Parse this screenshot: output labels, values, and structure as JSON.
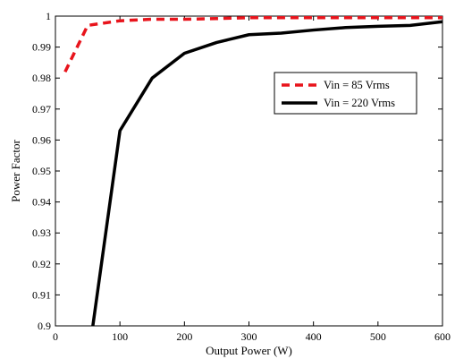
{
  "chart_data": {
    "type": "line",
    "xlabel": "Output Power (W)",
    "ylabel": "Power Factor",
    "xlim": [
      0,
      600
    ],
    "ylim": [
      0.9,
      1.0
    ],
    "xticks": [
      0,
      100,
      200,
      300,
      400,
      500,
      600
    ],
    "yticks": [
      0.9,
      0.91,
      0.92,
      0.93,
      0.94,
      0.95,
      0.96,
      0.97,
      0.98,
      0.99,
      1.0
    ],
    "xtick_labels": [
      "0",
      "100",
      "200",
      "300",
      "400",
      "500",
      "600"
    ],
    "ytick_labels": [
      "0.9",
      "0.91",
      "0.92",
      "0.93",
      "0.94",
      "0.95",
      "0.96",
      "0.97",
      "0.98",
      "0.99",
      "1"
    ],
    "grid": false,
    "legend_position": "upper-right",
    "series": [
      {
        "name": "Vin = 85 Vrms",
        "color": "#e8141c",
        "line_style": "dashed",
        "x": [
          15,
          50,
          100,
          150,
          200,
          250,
          300,
          350,
          400,
          450,
          500,
          550,
          600
        ],
        "y": [
          0.982,
          0.997,
          0.9985,
          0.999,
          0.999,
          0.9992,
          0.9995,
          0.9995,
          0.9995,
          0.9995,
          0.9995,
          0.9995,
          0.9995
        ]
      },
      {
        "name": "Vin = 220 Vrms",
        "color": "#000000",
        "line_style": "solid",
        "x": [
          58,
          100,
          150,
          200,
          250,
          300,
          350,
          400,
          450,
          500,
          550,
          600
        ],
        "y": [
          0.9,
          0.963,
          0.98,
          0.988,
          0.9915,
          0.994,
          0.9945,
          0.9955,
          0.9963,
          0.9967,
          0.997,
          0.9982
        ]
      }
    ]
  }
}
